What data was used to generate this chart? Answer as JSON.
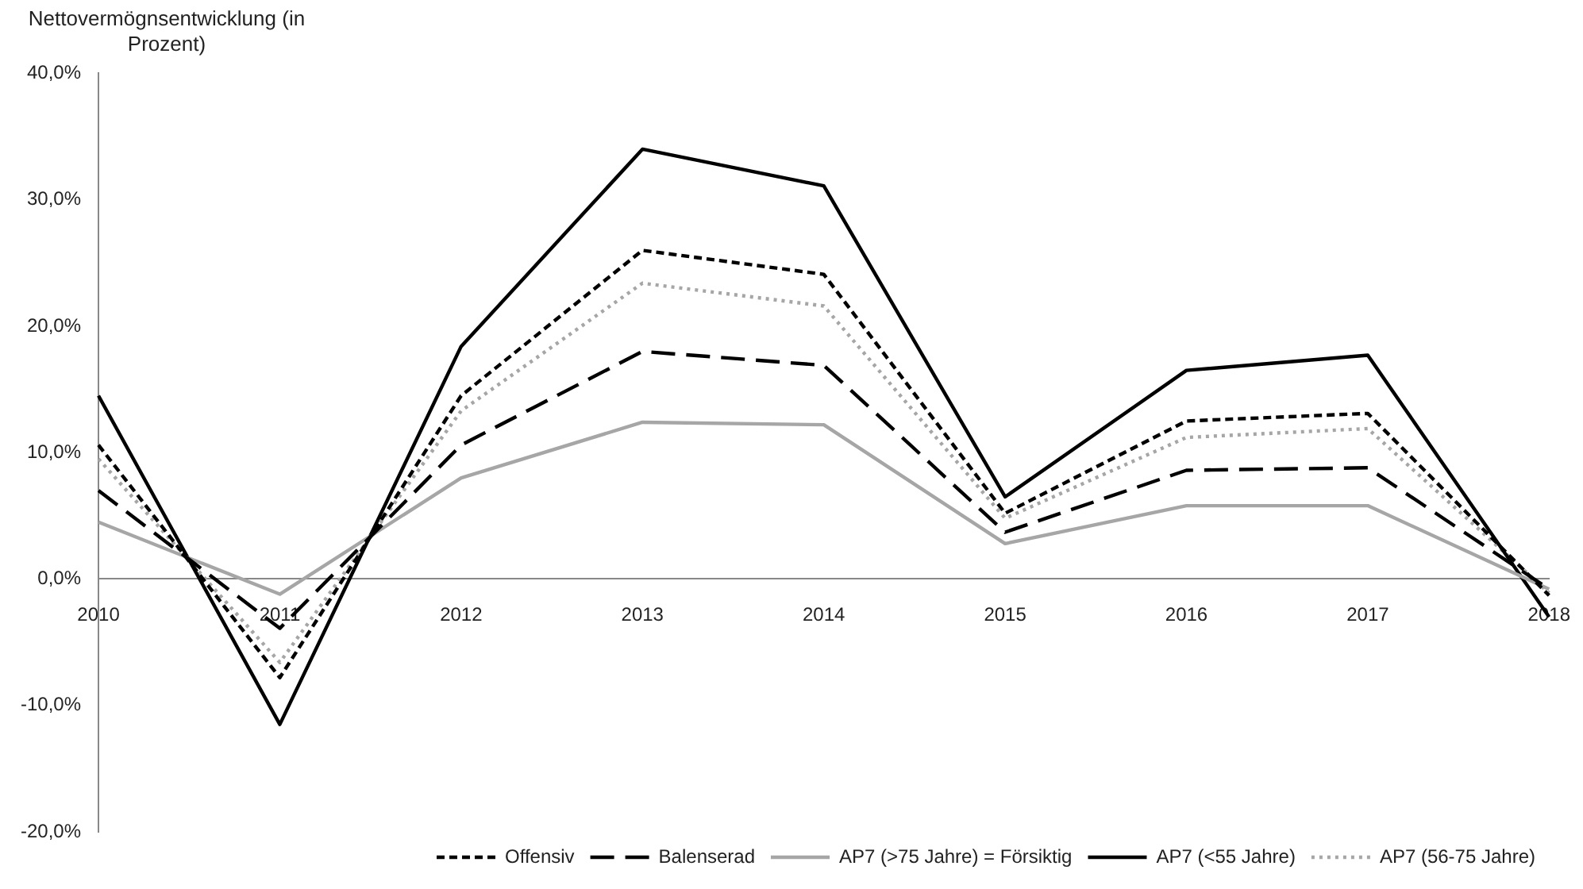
{
  "chart_data": {
    "type": "line",
    "ylabel": "Nettovermögnsentwicklung (in Prozent)",
    "categories": [
      "2010",
      "2011",
      "2012",
      "2013",
      "2014",
      "2015",
      "2016",
      "2017",
      "2018"
    ],
    "series": [
      {
        "name": "Offensiv",
        "color": "#000000",
        "line_style": "dashed",
        "values": [
          10.6,
          -7.8,
          14.5,
          26.0,
          24.1,
          5.2,
          12.5,
          13.1,
          -1.3
        ]
      },
      {
        "name": "Balenserad",
        "color": "#000000",
        "line_style": "longdash",
        "values": [
          7.0,
          -3.9,
          10.6,
          18.0,
          16.9,
          3.7,
          8.6,
          8.8,
          -0.8
        ]
      },
      {
        "name": "AP7 (>75 Jahre) = Försiktig",
        "color": "#a6a6a6",
        "line_style": "solid",
        "values": [
          4.5,
          -1.2,
          8.0,
          12.4,
          12.2,
          2.8,
          5.8,
          5.8,
          -0.8
        ]
      },
      {
        "name": "AP7 (<55 Jahre)",
        "color": "#000000",
        "line_style": "solid",
        "values": [
          14.5,
          -11.5,
          18.4,
          34.0,
          31.1,
          6.5,
          16.5,
          17.7,
          -3.0
        ]
      },
      {
        "name": "AP7 (56-75 Jahre)",
        "color": "#a6a6a6",
        "line_style": "dotted",
        "values": [
          9.5,
          -6.6,
          13.3,
          23.4,
          21.6,
          4.8,
          11.2,
          11.9,
          -1.1
        ]
      }
    ],
    "ylim": [
      -20,
      40
    ],
    "yticks": [
      {
        "value": -20,
        "label": "-20,0%"
      },
      {
        "value": -10,
        "label": "-10,0%"
      },
      {
        "value": 0,
        "label": "0,0%"
      },
      {
        "value": 10,
        "label": "10,0%"
      },
      {
        "value": 20,
        "label": "20,0%"
      },
      {
        "value": 30,
        "label": "30,0%"
      },
      {
        "value": 40,
        "label": "40,0%"
      }
    ],
    "grid": false,
    "legend": "bottom right",
    "marker": "none"
  }
}
